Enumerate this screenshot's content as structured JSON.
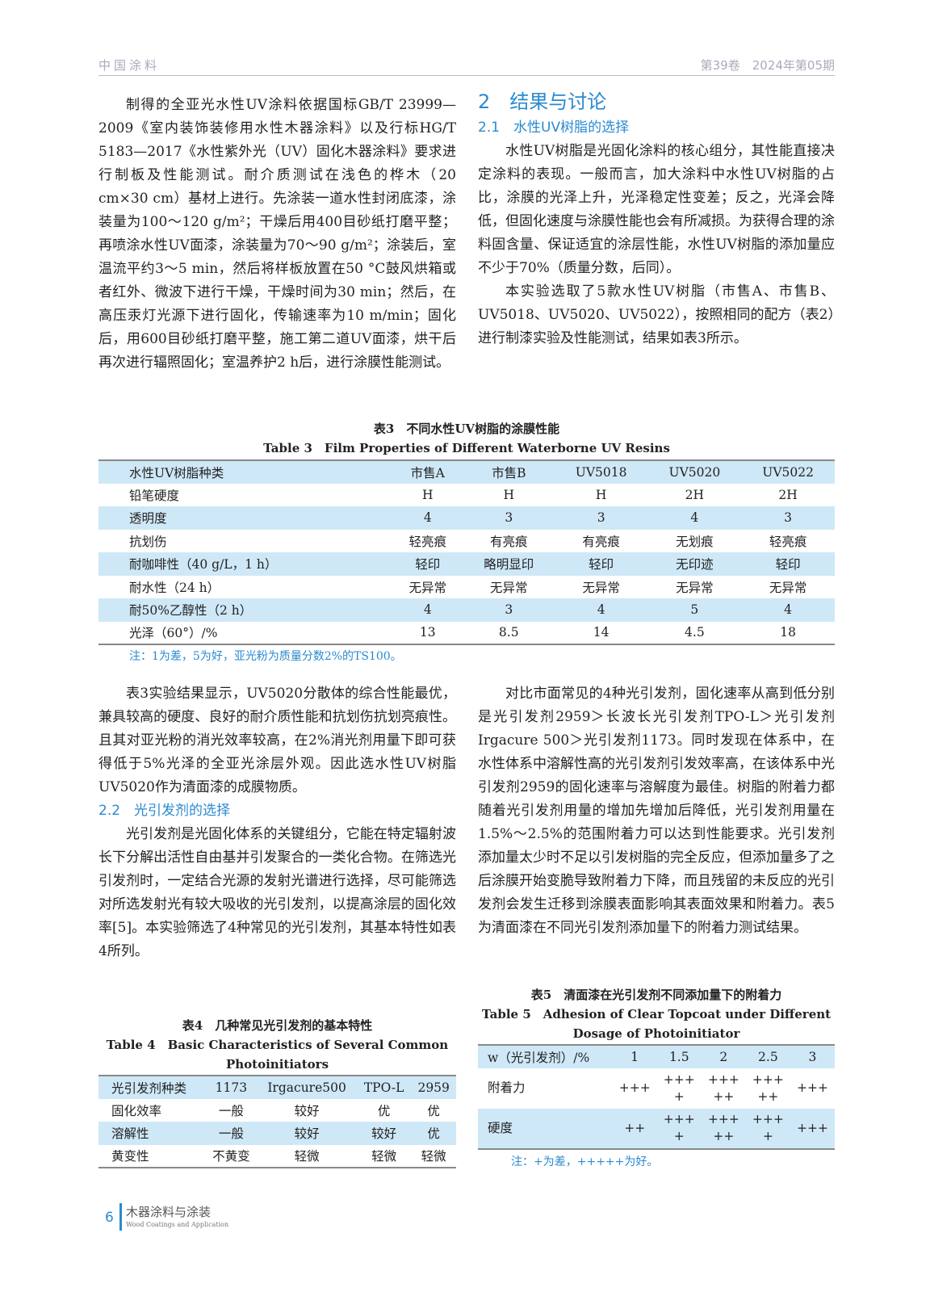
{
  "header": {
    "journal": "中国涂料",
    "issue": "第39卷　2024年第05期"
  },
  "left_top": "制得的全亚光水性UV涂料依据国标GB/T 23999—2009《室内装饰装修用水性木器涂料》以及行标HG/T 5183—2017《水性紫外光（UV）固化木器涂料》要求进行制板及性能测试。耐介质测试在浅色的桦木（20 cm×30 cm）基材上进行。先涂装一道水性封闭底漆，涂装量为100～120 g/m²；干燥后用400目砂纸打磨平整；再喷涂水性UV面漆，涂装量为70～90 g/m²；涂装后，室温流平约3～5 min，然后将样板放置在50 °C鼓风烘箱或者红外、微波下进行干燥，干燥时间为30 min；然后，在高压汞灯光源下进行固化，传输速率为10 m/min；固化后，用600目砂纸打磨平整，施工第二道UV面漆，烘干后再次进行辐照固化；室温养护2 h后，进行涂膜性能测试。",
  "section2": "2　结果与讨论",
  "section21": "2.1　水性UV树脂的选择",
  "right_p1": "水性UV树脂是光固化涂料的核心组分，其性能直接决定涂料的表现。一般而言，加大涂料中水性UV树脂的占比，涂膜的光泽上升，光泽稳定性变差；反之，光泽会降低，但固化速度与涂膜性能也会有所减损。为获得合理的涂料固含量、保证适宜的涂层性能，水性UV树脂的添加量应不少于70%（质量分数，后同）。",
  "right_p2": "本实验选取了5款水性UV树脂（市售A、市售B、UV5018、UV5020、UV5022），按照相同的配方（表2）进行制漆实验及性能测试，结果如表3所示。",
  "table3": {
    "cap_cn": "表3　不同水性UV树脂的涂膜性能",
    "cap_en": "Table 3　Film Properties of Different Waterborne UV Resins",
    "rows": [
      [
        "水性UV树脂种类",
        "市售A",
        "市售B",
        "UV5018",
        "UV5020",
        "UV5022"
      ],
      [
        "铅笔硬度",
        "H",
        "H",
        "H",
        "2H",
        "2H"
      ],
      [
        "透明度",
        "4",
        "3",
        "3",
        "4",
        "3"
      ],
      [
        "抗划伤",
        "轻亮痕",
        "有亮痕",
        "有亮痕",
        "无划痕",
        "轻亮痕"
      ],
      [
        "耐咖啡性（40 g/L，1 h）",
        "轻印",
        "略明显印",
        "轻印",
        "无印迹",
        "轻印"
      ],
      [
        "耐水性（24 h）",
        "无异常",
        "无异常",
        "无异常",
        "无异常",
        "无异常"
      ],
      [
        "耐50%乙醇性（2 h）",
        "4",
        "3",
        "4",
        "5",
        "4"
      ],
      [
        "光泽（60°）/%",
        "13",
        "8.5",
        "14",
        "4.5",
        "18"
      ]
    ],
    "note": "注：1为差，5为好，亚光粉为质量分数2%的TS100。"
  },
  "left_p2": "表3实验结果显示，UV5020分散体的综合性能最优，兼具较高的硬度、良好的耐介质性能和抗划伤抗划亮痕性。且其对亚光粉的消光效率较高，在2%消光剂用量下即可获得低于5%光泽的全亚光涂层外观。因此选水性UV树脂UV5020作为清面漆的成膜物质。",
  "section22": "2.2　光引发剂的选择",
  "left_p3": "光引发剂是光固化体系的关键组分，它能在特定辐射波长下分解出活性自由基并引发聚合的一类化合物。在筛选光引发剂时，一定结合光源的发射光谱进行选择，尽可能筛选对所选发射光有较大吸收的光引发剂，以提高涂层的固化效率[5]。本实验筛选了4种常见的光引发剂，其基本特性如表4所列。",
  "right_p3": "对比市面常见的4种光引发剂，固化速率从高到低分别是光引发剂2959＞长波长光引发剂TPO-L＞光引发剂Irgacure 500＞光引发剂1173。同时发现在体系中，在水性体系中溶解性高的光引发剂引发效率高，在该体系中光引发剂2959的固化速率与溶解度为最佳。树脂的附着力都随着光引发剂用量的增加先增加后降低，光引发剂用量在1.5%～2.5%的范围附着力可以达到性能要求。光引发剂添加量太少时不足以引发树脂的完全反应，但添加量多了之后涂膜开始变脆导致附着力下降，而且残留的未反应的光引发剂会发生迁移到涂膜表面影响其表面效果和附着力。表5为清面漆在不同光引发剂添加量下的附着力测试结果。",
  "table4": {
    "cap_cn": "表4　几种常见光引发剂的基本特性",
    "cap_en": "Table 4　Basic Characteristics of Several Common Photoinitiators",
    "rows": [
      [
        "光引发剂种类",
        "1173",
        "Irgacure500",
        "TPO-L",
        "2959"
      ],
      [
        "固化效率",
        "一般",
        "较好",
        "优",
        "优"
      ],
      [
        "溶解性",
        "一般",
        "较好",
        "较好",
        "优"
      ],
      [
        "黄变性",
        "不黄变",
        "轻微",
        "轻微",
        "轻微"
      ]
    ]
  },
  "table5": {
    "cap_cn": "表5　清面漆在光引发剂不同添加量下的附着力",
    "cap_en": "Table 5　Adhesion of Clear Topcoat under Different Dosage of Photoinitiator",
    "rows": [
      [
        "w（光引发剂）/%",
        "1",
        "1.5",
        "2",
        "2.5",
        "3"
      ],
      [
        "附着力",
        "+++",
        "++++",
        "+++++",
        "+++++",
        "+++"
      ],
      [
        "硬度",
        "++",
        "++++",
        "+++++",
        "++++",
        "+++"
      ]
    ],
    "note": "注：+为差，+++++为好。"
  },
  "footer": {
    "page": "6",
    "journal_cn": "木器涂料与涂装",
    "journal_en": "Wood Coatings and Application"
  }
}
